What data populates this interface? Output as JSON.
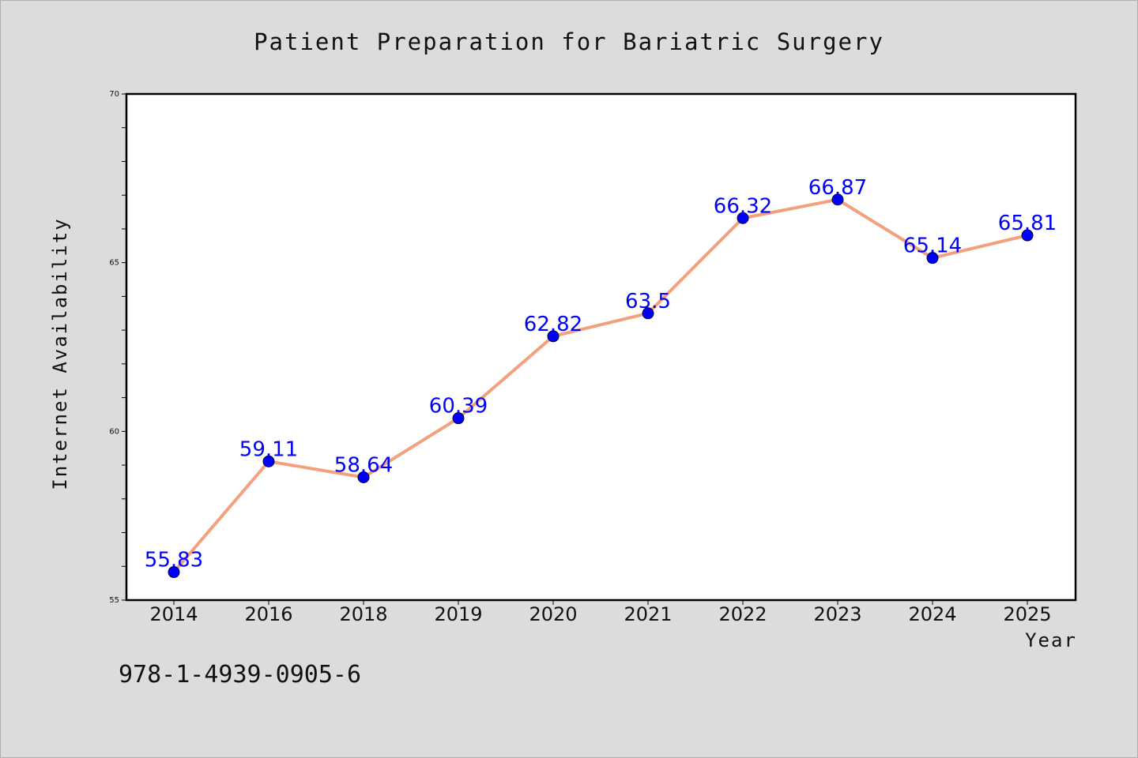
{
  "chart_data": {
    "type": "line",
    "title": "Patient Preparation for Bariatric Surgery",
    "xlabel": "Year",
    "ylabel": "Internet Availability",
    "categories": [
      "2014",
      "2016",
      "2018",
      "2019",
      "2020",
      "2021",
      "2022",
      "2023",
      "2024",
      "2025"
    ],
    "series": [
      {
        "values": [
          55.83,
          59.11,
          58.64,
          60.39,
          62.82,
          63.5,
          66.32,
          66.87,
          65.14,
          65.81
        ],
        "data_labels": [
          "55.83",
          "59.11",
          "58.64",
          "60.39",
          "62.82",
          "63.5",
          "66.32",
          "66.87",
          "65.14",
          "65.81"
        ]
      }
    ],
    "ylim": [
      55,
      70
    ],
    "yticks": [
      55,
      60,
      65,
      70
    ],
    "grid": false,
    "legend": "none",
    "colors": {
      "line": "#f4a07e",
      "marker": "#0000ff",
      "data_label": "#0000ff",
      "plot_background": "#ffffff",
      "figure_background": "#dcdcdc"
    }
  },
  "footer": {
    "isbn": "978-1-4939-0905-6"
  }
}
